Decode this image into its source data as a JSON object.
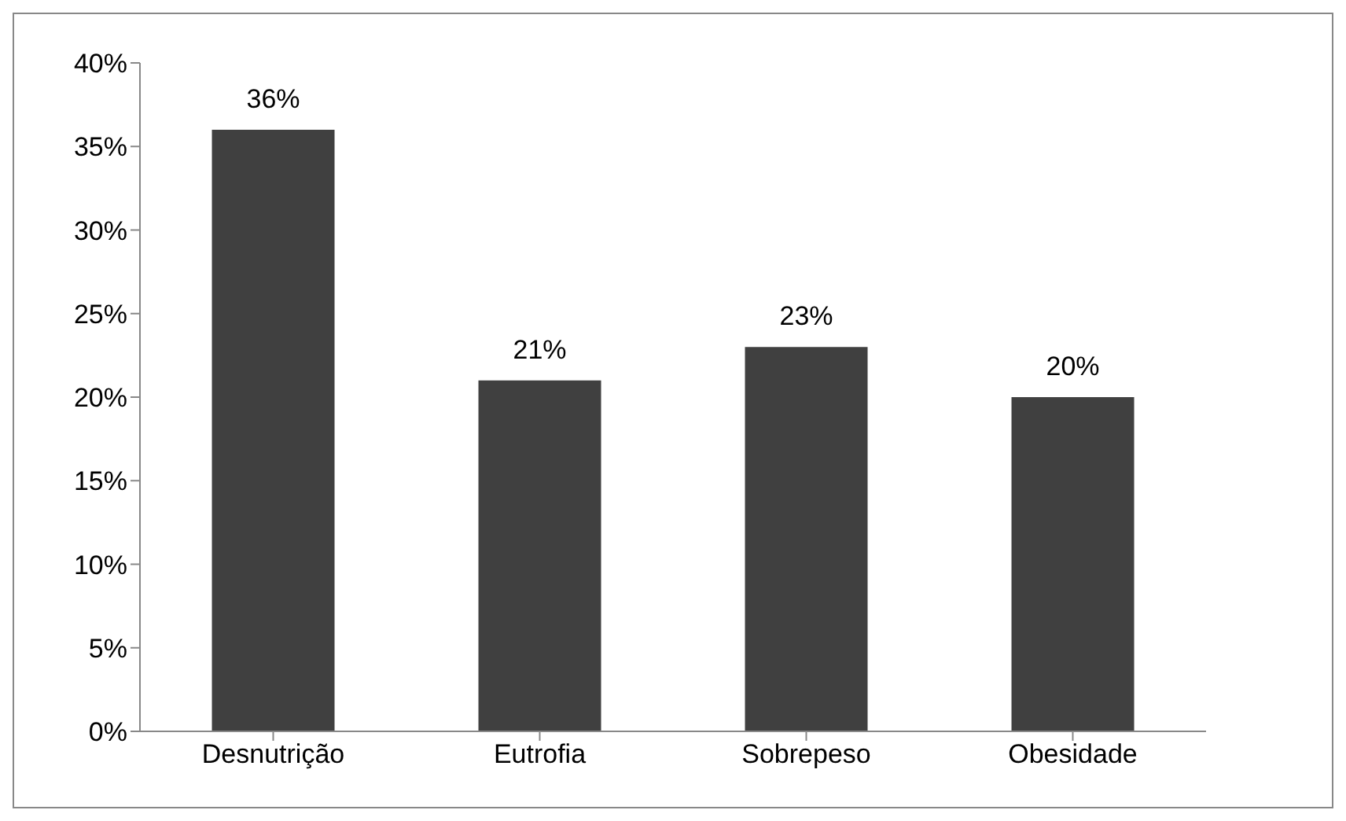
{
  "chart_data": {
    "type": "bar",
    "categories": [
      "Desnutrição",
      "Eutrofia",
      "Sobrepeso",
      "Obesidade"
    ],
    "values": [
      36,
      21,
      23,
      20
    ],
    "color": "#404040",
    "value_labels": [
      "36%",
      "21%",
      "23%",
      "20%"
    ],
    "ylim": [
      0,
      40
    ],
    "yticks": [
      {
        "value": 0,
        "label": "0%"
      },
      {
        "value": 5,
        "label": "5%"
      },
      {
        "value": 10,
        "label": "10%"
      },
      {
        "value": 15,
        "label": "15%"
      },
      {
        "value": 20,
        "label": "20%"
      },
      {
        "value": 25,
        "label": "25%"
      },
      {
        "value": 30,
        "label": "30%"
      },
      {
        "value": 35,
        "label": "35%"
      },
      {
        "value": 40,
        "label": "40%"
      }
    ],
    "grid": false,
    "legend": false
  }
}
